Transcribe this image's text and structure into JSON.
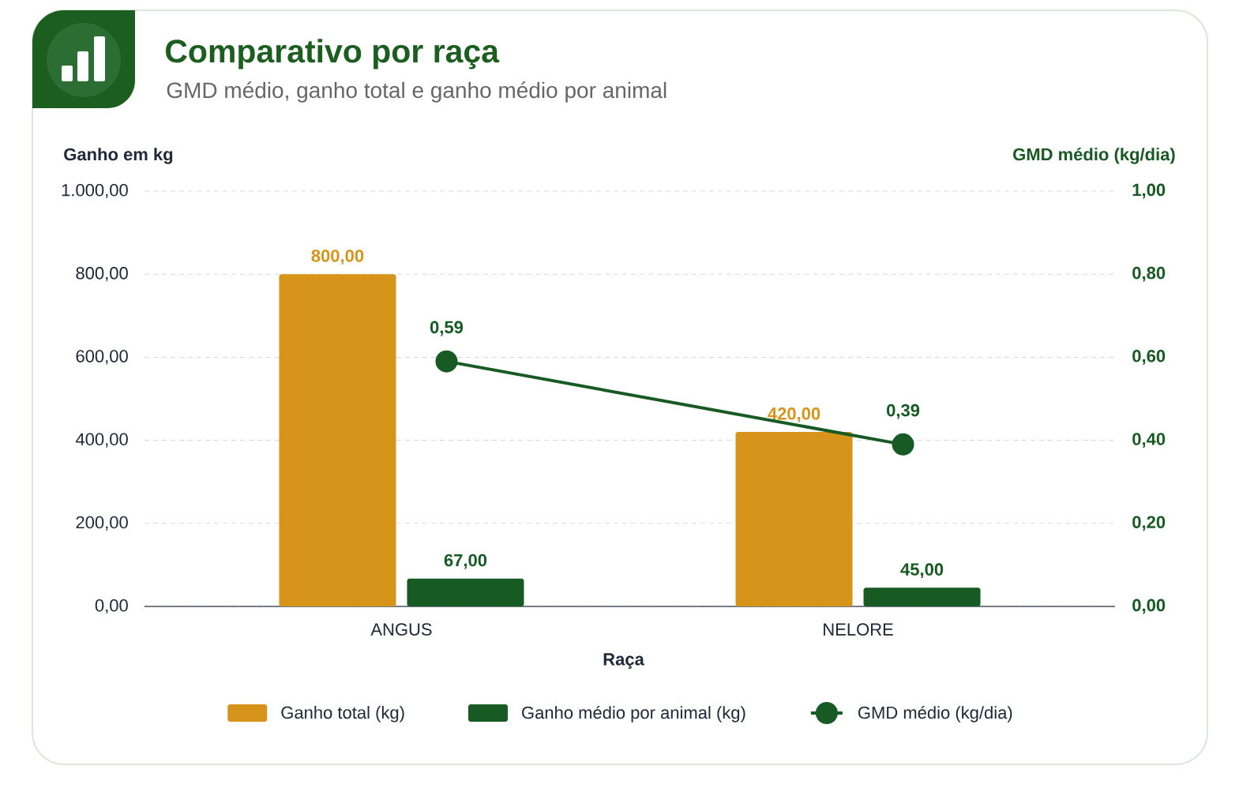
{
  "chart_data": {
    "type": "bar",
    "title": "Comparativo por raça",
    "subtitle": "GMD médio, ganho total e ganho médio por animal",
    "xlabel": "Raça",
    "ylabel": "Ganho em kg",
    "y2label": "GMD médio (kg/dia)",
    "categories": [
      "ANGUS",
      "NELORE"
    ],
    "series": [
      {
        "name": "Ganho total (kg)",
        "color": "#d6941a",
        "values": [
          800,
          420
        ],
        "value_labels": [
          "800,00",
          "420,00"
        ]
      },
      {
        "name": "Ganho médio por animal (kg)",
        "color": "#175a24",
        "values": [
          67,
          45
        ],
        "value_labels": [
          "67,00",
          "45,00"
        ]
      },
      {
        "name": "GMD médio (kg/dia)",
        "type": "line",
        "axis": "y2",
        "color": "#175a24",
        "marker": "circle",
        "values": [
          0.59,
          0.39
        ],
        "value_labels": [
          "0,59",
          "0,39"
        ]
      }
    ],
    "ylim": [
      0,
      1000
    ],
    "yticks": [
      {
        "value": 0,
        "label": "0,00"
      },
      {
        "value": 200,
        "label": "200,00"
      },
      {
        "value": 400,
        "label": "400,00"
      },
      {
        "value": 600,
        "label": "600,00"
      },
      {
        "value": 800,
        "label": "800,00"
      },
      {
        "value": 1000,
        "label": "1.000,00"
      }
    ],
    "y2lim": [
      0,
      1
    ],
    "y2ticks": [
      {
        "value": 0,
        "label": "0,00"
      },
      {
        "value": 0.2,
        "label": "0,20"
      },
      {
        "value": 0.4,
        "label": "0,40"
      },
      {
        "value": 0.6,
        "label": "0,60"
      },
      {
        "value": 0.8,
        "label": "0,80"
      },
      {
        "value": 1,
        "label": "1,00"
      }
    ],
    "grid": "y",
    "legend": "bottom"
  }
}
